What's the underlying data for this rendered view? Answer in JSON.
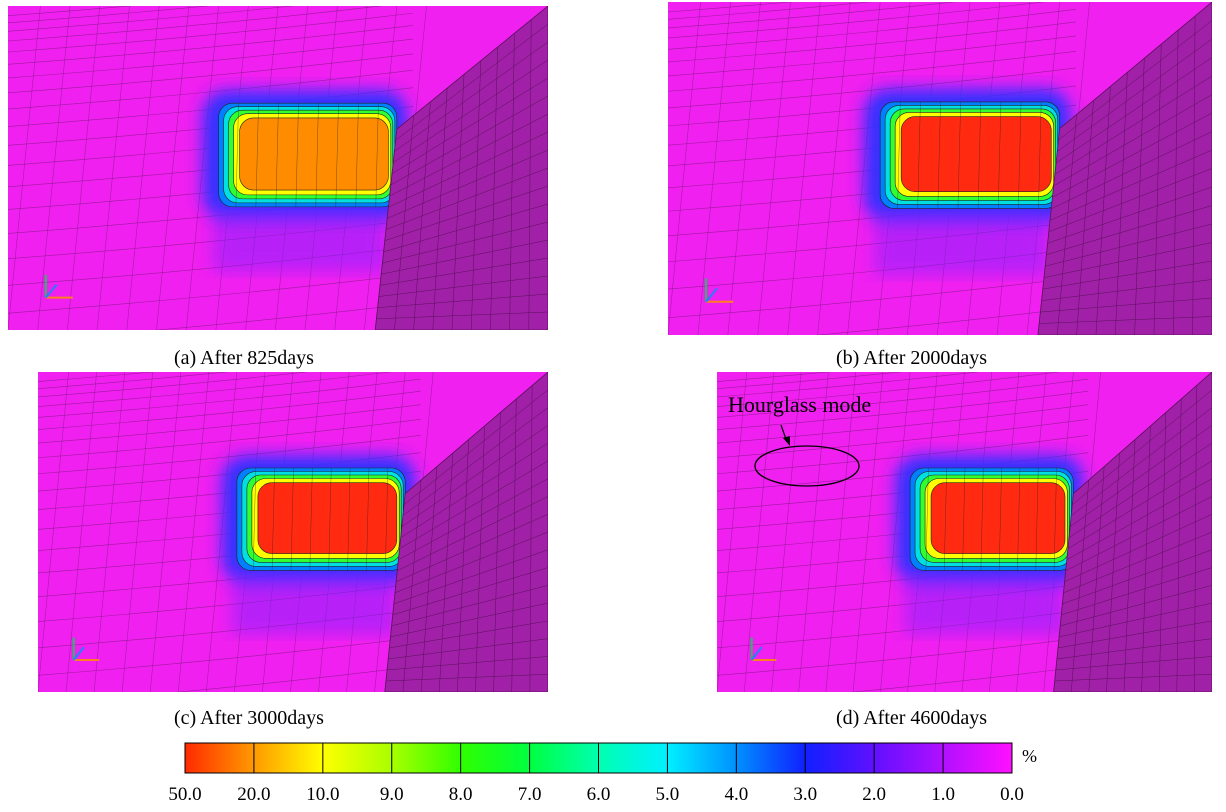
{
  "panels": [
    {
      "caption": "(a) After 825days"
    },
    {
      "caption": "(b) After 2000days"
    },
    {
      "caption": "(c) After 3000days"
    },
    {
      "caption": "(d) After 4600days",
      "annotation": "Hourglass mode"
    }
  ],
  "colorbar": {
    "unit": "%",
    "labels": [
      "50.0",
      "20.0",
      "10.0",
      "9.0",
      "8.0",
      "7.0",
      "6.0",
      "5.0",
      "4.0",
      "3.0",
      "2.0",
      "1.0",
      "0.0"
    ],
    "colors": [
      "#ff2a00",
      "#ff9a00",
      "#ffff00",
      "#a8ff00",
      "#30ff00",
      "#00ff40",
      "#00ffb0",
      "#00f0ff",
      "#0090ff",
      "#1020ff",
      "#6010ff",
      "#b010ff",
      "#ff10ff"
    ]
  }
}
